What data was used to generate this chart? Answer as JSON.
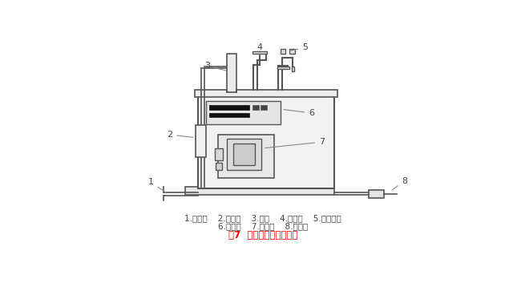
{
  "title": "图7  燃油蒸汽发生器结构",
  "title_color": "#FF0000",
  "caption_line1": "1.供水口    2.水位计    3.烟囱    4.压力表    5.压力开关",
  "caption_line2": "6.控制器    7.燃烧器    8.排污口",
  "caption_color": "#444444",
  "bg_color": "#FFFFFF",
  "lc": "#999999",
  "dc": "#555555"
}
